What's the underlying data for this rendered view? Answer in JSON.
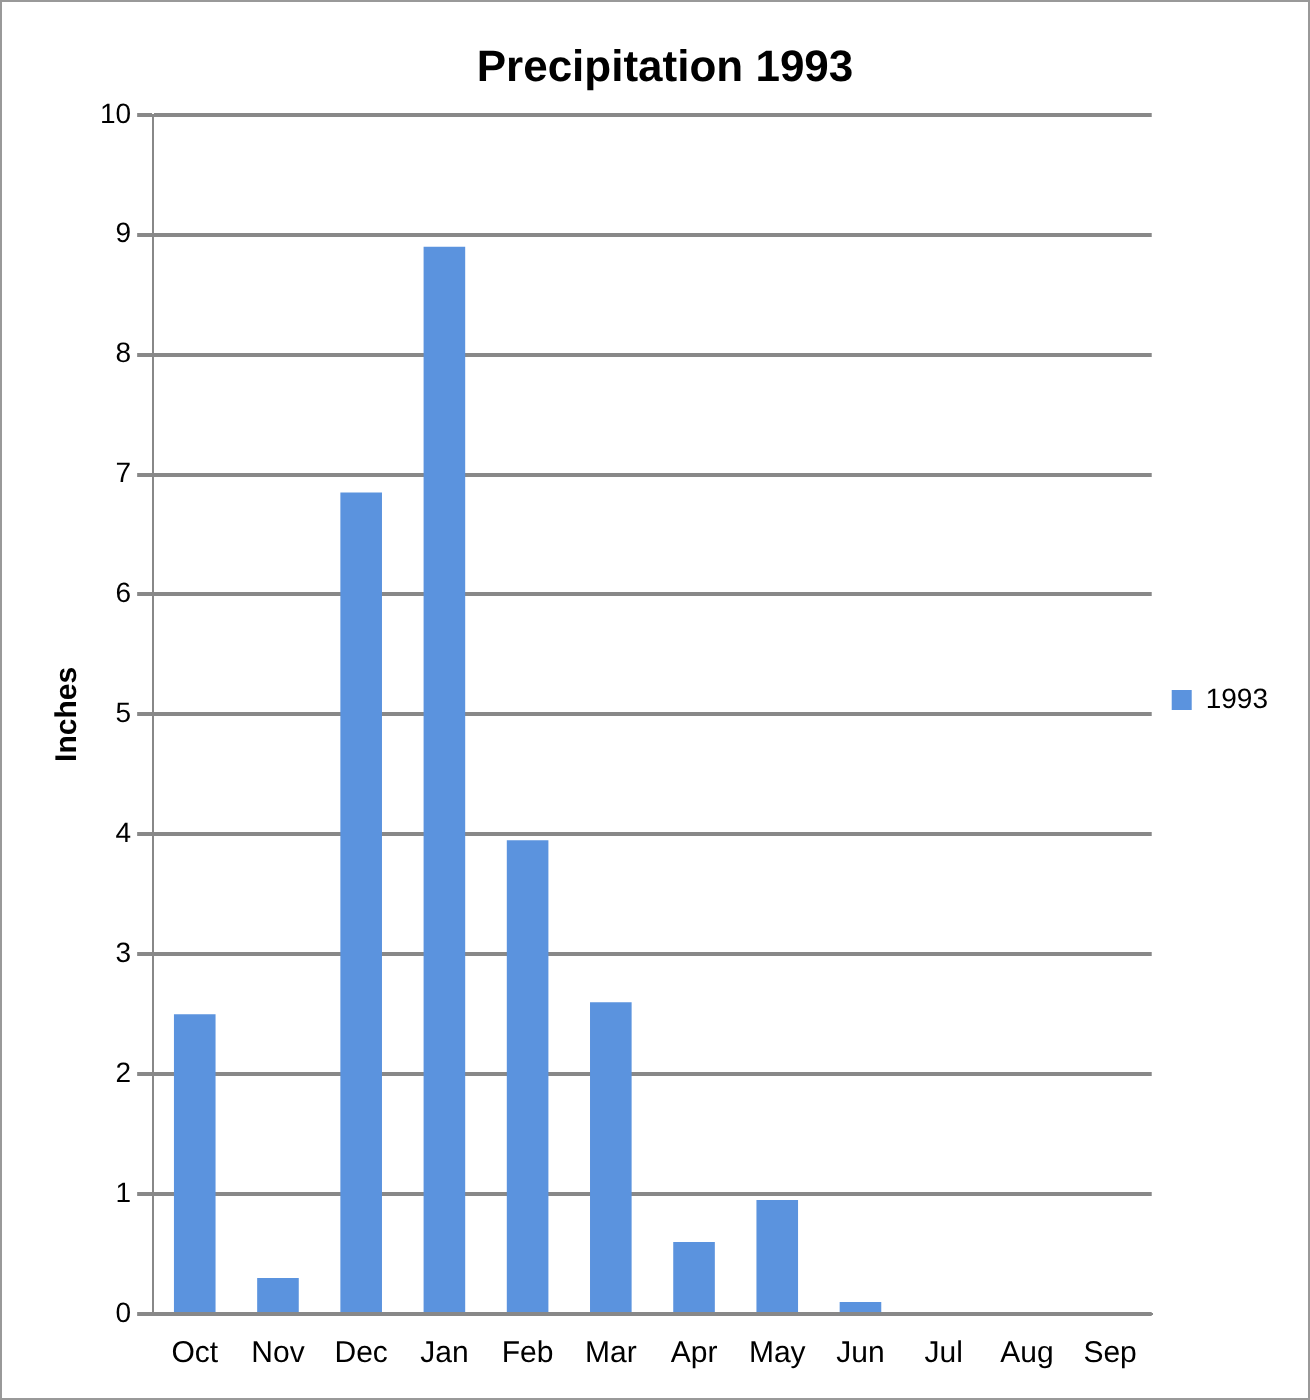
{
  "chart_data": {
    "type": "bar",
    "title": "Precipitation 1993",
    "ylabel": "Inches",
    "categories": [
      "Oct",
      "Nov",
      "Dec",
      "Jan",
      "Feb",
      "Mar",
      "Apr",
      "May",
      "Jun",
      "Jul",
      "Aug",
      "Sep"
    ],
    "series": [
      {
        "name": "1993",
        "color": "#5b93de",
        "values": [
          2.5,
          0.3,
          6.85,
          8.9,
          3.95,
          2.6,
          0.6,
          0.95,
          0.1,
          0,
          0,
          0
        ]
      }
    ],
    "ylim": [
      0,
      10
    ],
    "yticks": [
      0,
      1,
      2,
      3,
      4,
      5,
      6,
      7,
      8,
      9,
      10
    ],
    "grid": "y",
    "legend": "right"
  }
}
